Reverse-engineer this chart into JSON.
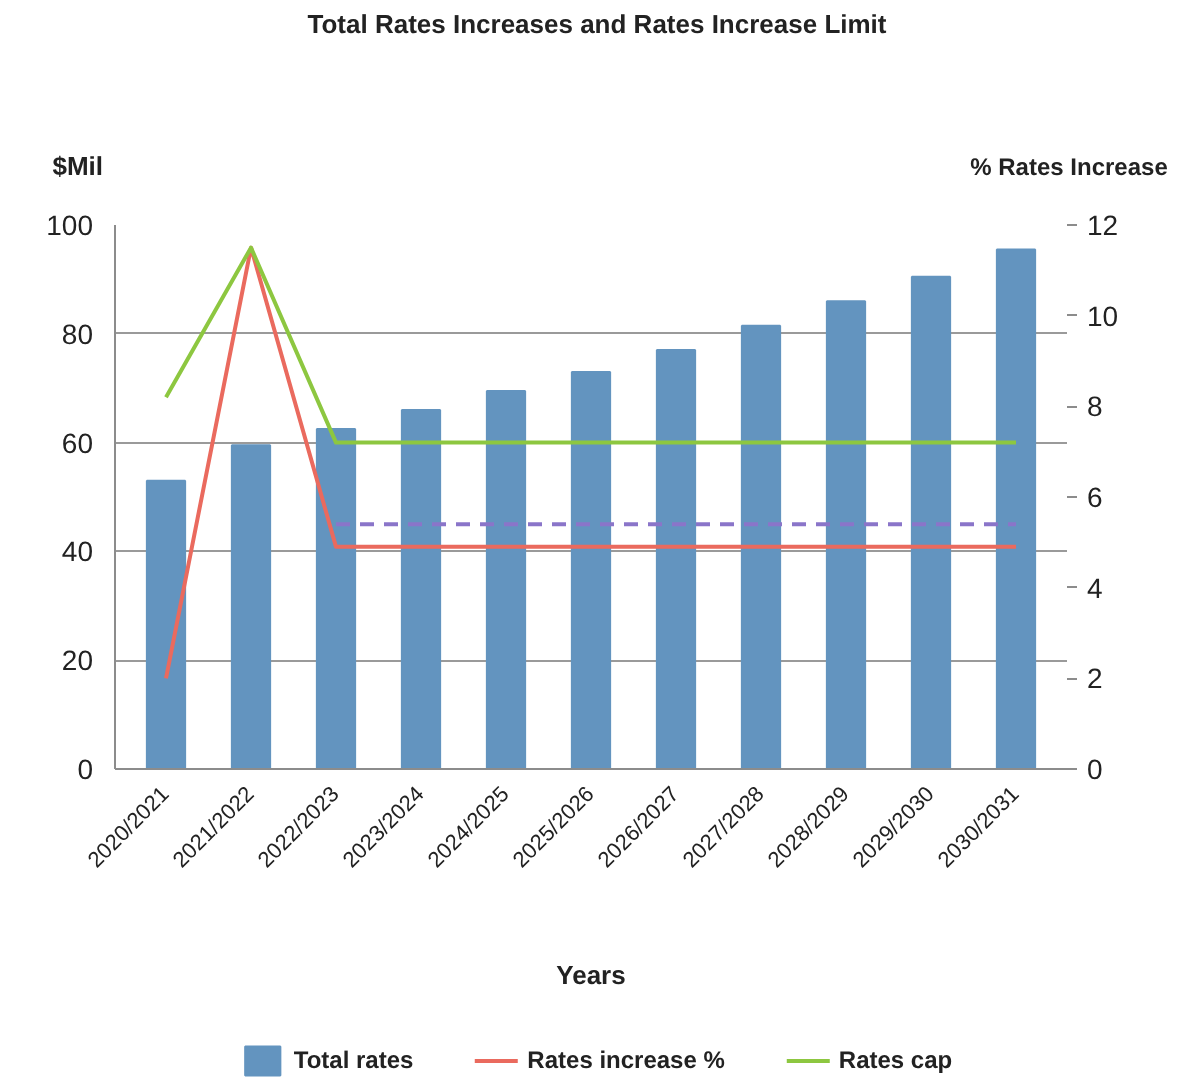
{
  "chart_data": {
    "type": "bar",
    "title": "Total Rates Increases and Rates Increase Limit",
    "xlabel": "Years",
    "ylabel": "$Mil",
    "y2label": "% Rates Increase",
    "categories": [
      "2020/2021",
      "2021/2022",
      "2022/2023",
      "2023/2024",
      "2024/2025",
      "2025/2026",
      "2026/2027",
      "2027/2028",
      "2028/2029",
      "2029/2030",
      "2030/2031"
    ],
    "series": [
      {
        "name": "Total rates",
        "color": "#6394bf",
        "values": [
          53,
          59.5,
          62.5,
          66,
          69.5,
          73,
          77,
          81.5,
          86,
          90.5,
          95.5
        ]
      },
      {
        "name": "Rates increase %",
        "type": "line",
        "axis": "y2",
        "color": "#ea6a5e",
        "values": [
          2.0,
          11.5,
          4.9,
          4.9,
          4.9,
          4.9,
          4.9,
          4.9,
          4.9,
          4.9,
          4.9
        ]
      },
      {
        "name": "Rates cap",
        "type": "line",
        "axis": "y2",
        "color": "#8dc740",
        "values": [
          8.2,
          11.5,
          7.2,
          7.2,
          7.2,
          7.2,
          7.2,
          7.2,
          7.2,
          7.2,
          7.2
        ]
      },
      {
        "type": "line",
        "axis": "y2",
        "color": "#8a75c9",
        "line_style": "dashed",
        "values": [
          null,
          null,
          5.4,
          5.4,
          5.4,
          5.4,
          5.4,
          5.4,
          5.4,
          5.4,
          5.4
        ]
      }
    ],
    "ylim": [
      0,
      100
    ],
    "yticks": [
      0,
      20,
      40,
      60,
      80,
      100
    ],
    "y2lim": [
      0,
      12
    ],
    "y2ticks": [
      0,
      2,
      4,
      6,
      8,
      10,
      12
    ],
    "grid": "y",
    "legend": "bottom",
    "line_style": "solid"
  }
}
